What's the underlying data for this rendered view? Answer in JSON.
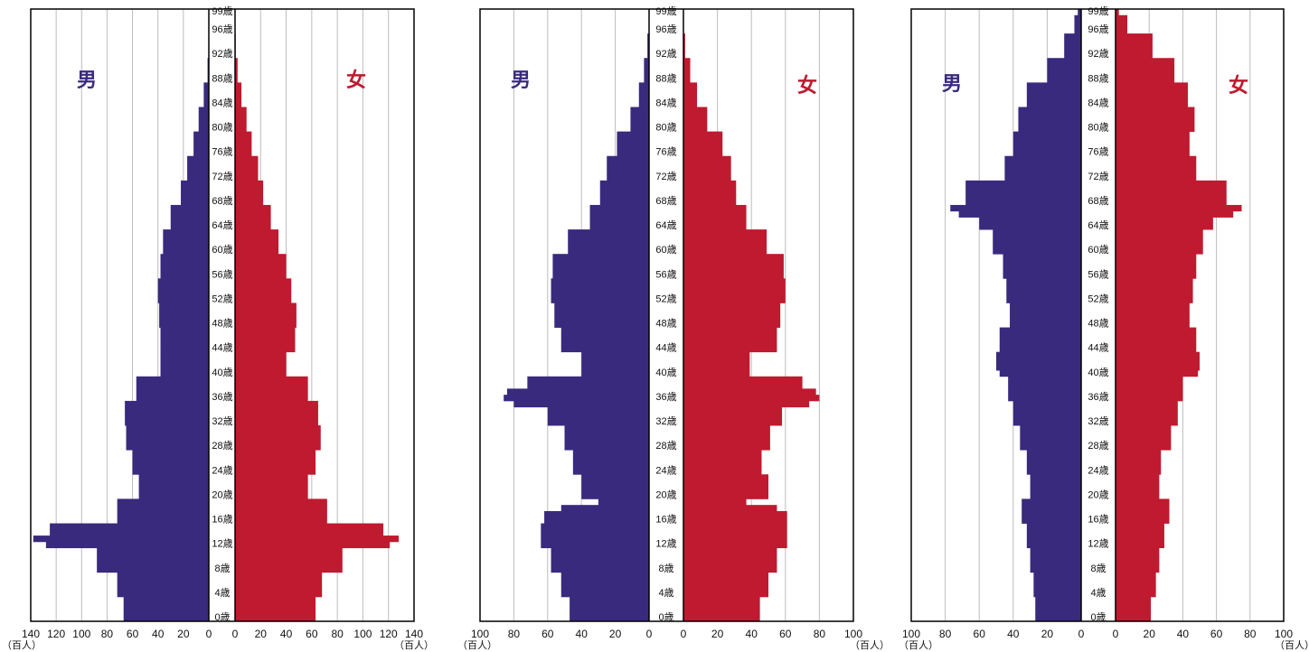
{
  "colors": {
    "male": "#3a2a7d",
    "female": "#bf1a2f",
    "grid": "#bdbdbd",
    "axis": "#000000"
  },
  "unit_label": "（百人）",
  "age_labels": [
    "0歳",
    "4歳",
    "8歳",
    "12歳",
    "16歳",
    "20歳",
    "24歳",
    "28歳",
    "32歳",
    "36歳",
    "40歳",
    "44歳",
    "48歳",
    "52歳",
    "56歳",
    "60歳",
    "64歳",
    "68歳",
    "72歳",
    "76歳",
    "80歳",
    "84歳",
    "88歳",
    "92歳",
    "96歳",
    "99歳"
  ],
  "chart_data": [
    {
      "type": "bar",
      "subtype": "population-pyramid",
      "male_label": "男",
      "female_label": "女",
      "xlim": [
        0,
        140
      ],
      "ticks": [
        "140",
        "120",
        "100",
        "80",
        "60",
        "40",
        "20",
        "0"
      ],
      "ages": [
        0,
        4,
        8,
        12,
        13,
        14,
        16,
        20,
        24,
        28,
        32,
        36,
        40,
        44,
        48,
        52,
        56,
        60,
        64,
        68,
        72,
        76,
        80,
        84,
        88,
        92,
        96,
        99
      ],
      "series": [
        {
          "name": "男",
          "values": [
            67,
            72,
            88,
            128,
            138,
            125,
            72,
            55,
            60,
            65,
            66,
            57,
            38,
            38,
            39,
            40,
            38,
            36,
            30,
            22,
            17,
            12,
            8,
            4,
            1,
            0.3,
            0,
            0
          ]
        },
        {
          "name": "女",
          "values": [
            63,
            68,
            84,
            121,
            128,
            116,
            72,
            57,
            63,
            67,
            65,
            57,
            40,
            47,
            48,
            44,
            40,
            34,
            28,
            22,
            18,
            13,
            9,
            5,
            2,
            0.5,
            0,
            0
          ]
        }
      ]
    },
    {
      "type": "bar",
      "subtype": "population-pyramid",
      "male_label": "男",
      "female_label": "女",
      "xlim": [
        0,
        100
      ],
      "ticks": [
        "100",
        "80",
        "60",
        "40",
        "20",
        "0"
      ],
      "ages": [
        0,
        4,
        8,
        12,
        16,
        18,
        19,
        20,
        24,
        28,
        32,
        35,
        36,
        37,
        38,
        40,
        44,
        48,
        52,
        56,
        60,
        64,
        68,
        72,
        76,
        80,
        84,
        88,
        92,
        96,
        99
      ],
      "series": [
        {
          "name": "男",
          "values": [
            47,
            52,
            58,
            64,
            62,
            52,
            30,
            40,
            45,
            50,
            60,
            80,
            86,
            84,
            72,
            40,
            52,
            56,
            58,
            57,
            48,
            35,
            29,
            25,
            19,
            11,
            6,
            3,
            1,
            0,
            0
          ]
        },
        {
          "name": "女",
          "values": [
            45,
            50,
            55,
            61,
            61,
            55,
            37,
            50,
            46,
            51,
            58,
            74,
            80,
            78,
            70,
            39,
            55,
            57,
            60,
            59,
            49,
            37,
            31,
            28,
            23,
            14,
            8,
            4,
            1,
            0,
            0
          ]
        }
      ]
    },
    {
      "type": "bar",
      "subtype": "population-pyramid",
      "male_label": "男",
      "female_label": "女",
      "xlim": [
        0,
        100
      ],
      "ticks": [
        "100",
        "80",
        "60",
        "40",
        "20",
        "0"
      ],
      "ages": [
        0,
        4,
        8,
        12,
        16,
        20,
        24,
        28,
        32,
        36,
        40,
        41,
        44,
        48,
        52,
        56,
        60,
        64,
        66,
        67,
        68,
        72,
        76,
        80,
        84,
        88,
        92,
        96,
        99
      ],
      "series": [
        {
          "name": "男",
          "values": [
            27,
            28,
            30,
            32,
            35,
            30,
            32,
            36,
            40,
            43,
            48,
            50,
            48,
            42,
            44,
            46,
            52,
            60,
            72,
            77,
            68,
            45,
            40,
            37,
            32,
            20,
            10,
            4,
            2
          ]
        },
        {
          "name": "女",
          "values": [
            21,
            24,
            26,
            29,
            32,
            26,
            27,
            33,
            37,
            40,
            49,
            50,
            48,
            44,
            46,
            48,
            52,
            58,
            70,
            75,
            66,
            48,
            44,
            47,
            43,
            35,
            22,
            7,
            2
          ]
        }
      ]
    }
  ]
}
